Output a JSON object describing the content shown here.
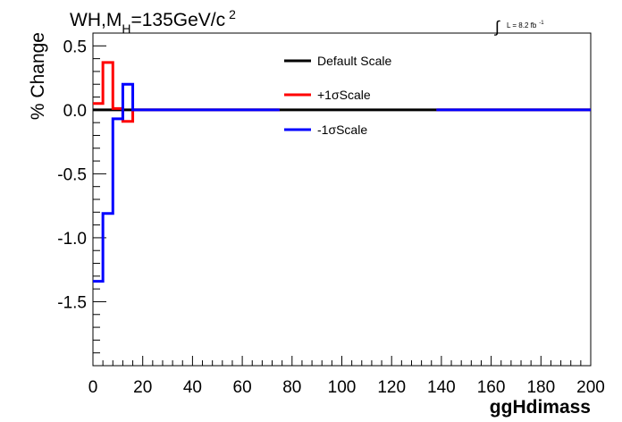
{
  "title": {
    "main": "WH,M",
    "sub": "H",
    "rest": "=135GeV/c",
    "sup": "2"
  },
  "lumi": {
    "integral": "∫",
    "text": "L = 8.2 fb",
    "sup": "-1"
  },
  "legend": [
    {
      "label": "Default Scale",
      "color": "#000000"
    },
    {
      "label": "+1σScale",
      "color": "#ff0000"
    },
    {
      "label": "-1σScale",
      "color": "#0000ff"
    }
  ],
  "chart_data": {
    "type": "line",
    "xlabel": "ggHdimass",
    "ylabel": "% Change",
    "xlim": [
      0,
      200
    ],
    "ylim": [
      -2.0,
      0.6
    ],
    "xticks": [
      0,
      20,
      40,
      60,
      80,
      100,
      120,
      140,
      160,
      180,
      200
    ],
    "xtick_labels": [
      "0",
      "20",
      "40",
      "60",
      "80",
      "100",
      "120",
      "140",
      "160",
      "180",
      "200"
    ],
    "yticks": [
      -1.5,
      -1.0,
      -0.5,
      0.0,
      0.5
    ],
    "ytick_labels": [
      "-1.5",
      "-1.0",
      "-0.5",
      "0.0",
      "0.5"
    ],
    "grid": false,
    "series": [
      {
        "name": "Default Scale",
        "color": "#000000",
        "step_x": [
          0,
          200
        ],
        "values": [
          0.0
        ]
      },
      {
        "name": "+1σScale",
        "color": "#ff0000",
        "step_x": [
          0,
          4,
          8,
          12,
          16,
          75,
          138,
          200
        ],
        "values": [
          0.05,
          0.37,
          0.01,
          -0.09,
          0.0,
          null,
          0.0
        ]
      },
      {
        "name": "-1σScale",
        "color": "#0000ff",
        "step_x": [
          0,
          4,
          8,
          12,
          16,
          75,
          138,
          200
        ],
        "values": [
          -1.34,
          -0.81,
          -0.07,
          0.2,
          0.0,
          null,
          0.0
        ]
      }
    ]
  }
}
